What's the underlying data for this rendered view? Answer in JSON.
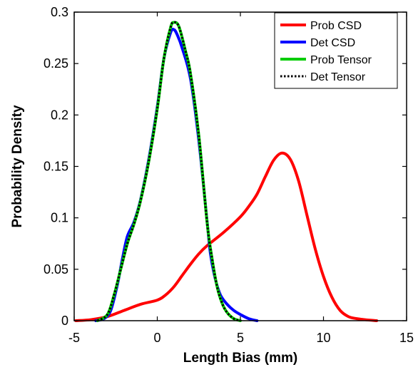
{
  "chart_data": {
    "type": "line",
    "title": "",
    "xlabel": "Length Bias (mm)",
    "ylabel": "Probability Density",
    "xlim": [
      -5,
      15
    ],
    "ylim": [
      0,
      0.3
    ],
    "xticks": [
      -5,
      0,
      5,
      10,
      15
    ],
    "yticks": [
      0,
      0.05,
      0.1,
      0.15,
      0.2,
      0.25,
      0.3
    ],
    "ytick_labels": [
      "0",
      "0.05",
      "0.1",
      "0.15",
      "0.2",
      "0.25",
      "0.3"
    ],
    "grid": false,
    "legend_position": "top-right",
    "series": [
      {
        "name": "Prob CSD",
        "color": "#ff0000",
        "style": "solid",
        "x": [
          -4.9,
          -4.0,
          -3.0,
          -2.0,
          -1.0,
          0.0,
          0.5,
          1.0,
          1.5,
          2.0,
          2.5,
          3.0,
          4.0,
          5.0,
          5.5,
          6.0,
          6.5,
          7.0,
          7.5,
          8.0,
          8.5,
          9.0,
          9.5,
          10.0,
          10.5,
          11.0,
          11.5,
          12.0,
          12.5,
          13.2
        ],
        "y": [
          0.0,
          0.001,
          0.004,
          0.01,
          0.016,
          0.02,
          0.025,
          0.033,
          0.044,
          0.055,
          0.065,
          0.073,
          0.086,
          0.101,
          0.111,
          0.123,
          0.14,
          0.156,
          0.163,
          0.157,
          0.136,
          0.103,
          0.07,
          0.043,
          0.023,
          0.01,
          0.004,
          0.002,
          0.001,
          0.0
        ]
      },
      {
        "name": "Det CSD",
        "color": "#0000ff",
        "style": "solid",
        "x": [
          -3.7,
          -3.2,
          -2.8,
          -2.4,
          -2.1,
          -1.8,
          -1.4,
          -1.0,
          -0.5,
          0.0,
          0.4,
          0.8,
          1.0,
          1.2,
          1.5,
          2.0,
          2.5,
          3.0,
          3.2,
          3.5,
          3.8,
          4.2,
          4.6,
          5.0,
          5.5,
          6.0
        ],
        "y": [
          0.0,
          0.002,
          0.01,
          0.035,
          0.06,
          0.082,
          0.096,
          0.118,
          0.158,
          0.208,
          0.255,
          0.28,
          0.283,
          0.278,
          0.265,
          0.235,
          0.175,
          0.096,
          0.065,
          0.04,
          0.025,
          0.016,
          0.01,
          0.006,
          0.002,
          0.0
        ]
      },
      {
        "name": "Prob Tensor",
        "color": "#00cc00",
        "style": "solid",
        "x": [
          -3.6,
          -3.0,
          -2.6,
          -2.2,
          -1.8,
          -1.4,
          -1.0,
          -0.5,
          0.0,
          0.4,
          0.8,
          1.0,
          1.3,
          1.7,
          2.0,
          2.5,
          3.0,
          3.3,
          3.6,
          3.9,
          4.2,
          4.6,
          5.0
        ],
        "y": [
          0.0,
          0.006,
          0.025,
          0.05,
          0.075,
          0.094,
          0.117,
          0.156,
          0.206,
          0.255,
          0.285,
          0.29,
          0.286,
          0.262,
          0.24,
          0.18,
          0.095,
          0.06,
          0.033,
          0.017,
          0.008,
          0.002,
          0.0
        ]
      },
      {
        "name": "Det Tensor",
        "color": "#000000",
        "style": "dotted",
        "x": [
          -3.6,
          -3.0,
          -2.6,
          -2.2,
          -1.8,
          -1.4,
          -1.0,
          -0.5,
          0.0,
          0.4,
          0.8,
          1.0,
          1.3,
          1.7,
          2.0,
          2.5,
          3.0,
          3.3,
          3.6,
          3.9,
          4.2,
          4.6,
          5.0
        ],
        "y": [
          0.0,
          0.006,
          0.025,
          0.05,
          0.075,
          0.094,
          0.117,
          0.156,
          0.206,
          0.255,
          0.285,
          0.29,
          0.286,
          0.262,
          0.24,
          0.18,
          0.095,
          0.06,
          0.033,
          0.017,
          0.008,
          0.002,
          0.0
        ]
      }
    ]
  }
}
